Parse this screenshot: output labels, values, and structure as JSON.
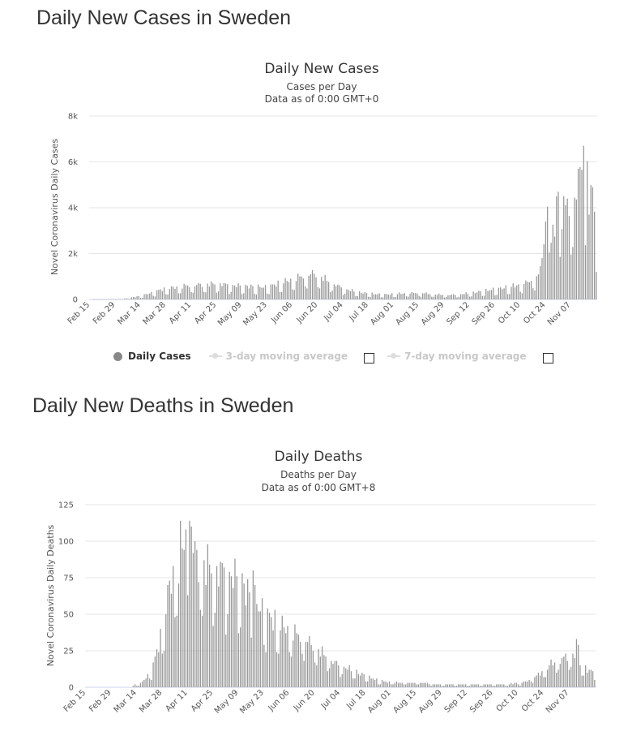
{
  "sections": [
    {
      "title": "Daily New Cases in Sweden"
    },
    {
      "title": "Daily New Deaths in Sweden"
    }
  ],
  "legend": {
    "items": [
      {
        "label": "Daily Cases",
        "active": true
      },
      {
        "label": "3-day moving average",
        "active": false
      },
      {
        "label": "7-day moving average",
        "active": false
      }
    ]
  },
  "colors": {
    "bar": "#999999",
    "grid": "#e6e6e6",
    "text": "#333333"
  },
  "chart_data": [
    {
      "type": "bar",
      "title": "Daily New Cases",
      "subtitle": "Cases per Day",
      "subtitle2": "Data as of 0:00 GMT+0",
      "ylabel": "Novel Coronavirus Daily Cases",
      "ylim": [
        0,
        8000
      ],
      "yticks": [
        0,
        2000,
        4000,
        6000,
        8000
      ],
      "ytick_labels": [
        "0",
        "2k",
        "4k",
        "6k",
        "8k"
      ],
      "x_start": "Feb 15",
      "num_days": 281,
      "xtick_labels": [
        "Feb 15",
        "Feb 29",
        "Mar 14",
        "Mar 28",
        "Apr 11",
        "Apr 25",
        "May 09",
        "May 23",
        "Jun 06",
        "Jun 20",
        "Jul 04",
        "Jul 18",
        "Aug 01",
        "Aug 15",
        "Aug 29",
        "Sep 12",
        "Sep 26",
        "Oct 10",
        "Oct 24",
        "Nov 07"
      ],
      "xtick_day_index": [
        0,
        14,
        28,
        42,
        56,
        70,
        84,
        98,
        112,
        126,
        140,
        154,
        168,
        182,
        196,
        210,
        224,
        238,
        252,
        266
      ],
      "anchors": [
        [
          0,
          0
        ],
        [
          18,
          5
        ],
        [
          20,
          50
        ],
        [
          24,
          100
        ],
        [
          28,
          150
        ],
        [
          32,
          250
        ],
        [
          36,
          350
        ],
        [
          40,
          450
        ],
        [
          44,
          500
        ],
        [
          48,
          550
        ],
        [
          52,
          600
        ],
        [
          56,
          620
        ],
        [
          60,
          650
        ],
        [
          66,
          680
        ],
        [
          70,
          700
        ],
        [
          76,
          650
        ],
        [
          80,
          620
        ],
        [
          84,
          600
        ],
        [
          88,
          580
        ],
        [
          92,
          560
        ],
        [
          96,
          540
        ],
        [
          100,
          600
        ],
        [
          104,
          700
        ],
        [
          108,
          800
        ],
        [
          112,
          900
        ],
        [
          116,
          1000
        ],
        [
          120,
          1100
        ],
        [
          124,
          1150
        ],
        [
          128,
          1000
        ],
        [
          132,
          800
        ],
        [
          136,
          650
        ],
        [
          140,
          500
        ],
        [
          144,
          400
        ],
        [
          148,
          330
        ],
        [
          152,
          280
        ],
        [
          156,
          250
        ],
        [
          160,
          230
        ],
        [
          164,
          220
        ],
        [
          168,
          240
        ],
        [
          172,
          260
        ],
        [
          176,
          280
        ],
        [
          180,
          290
        ],
        [
          184,
          280
        ],
        [
          188,
          250
        ],
        [
          192,
          220
        ],
        [
          196,
          200
        ],
        [
          200,
          200
        ],
        [
          204,
          220
        ],
        [
          208,
          260
        ],
        [
          212,
          300
        ],
        [
          216,
          350
        ],
        [
          220,
          400
        ],
        [
          224,
          450
        ],
        [
          228,
          500
        ],
        [
          232,
          560
        ],
        [
          236,
          620
        ],
        [
          240,
          700
        ],
        [
          244,
          850
        ],
        [
          248,
          1100
        ],
        [
          250,
          1400
        ],
        [
          252,
          1800
        ],
        [
          254,
          2300
        ],
        [
          256,
          2800
        ],
        [
          258,
          3200
        ],
        [
          260,
          3500
        ],
        [
          262,
          3800
        ],
        [
          264,
          4100
        ],
        [
          266,
          4400
        ],
        [
          268,
          4600
        ],
        [
          270,
          4800
        ],
        [
          272,
          5000
        ],
        [
          274,
          5200
        ],
        [
          276,
          5400
        ],
        [
          278,
          4500
        ],
        [
          280,
          3000
        ]
      ],
      "highlights": [
        [
          250,
          1800
        ],
        [
          251,
          2400
        ],
        [
          252,
          3400
        ],
        [
          253,
          4050
        ],
        [
          258,
          4500
        ],
        [
          259,
          4700
        ],
        [
          262,
          4500
        ],
        [
          264,
          4400
        ],
        [
          270,
          5700
        ],
        [
          272,
          5650
        ],
        [
          273,
          6700
        ],
        [
          276,
          3700
        ]
      ],
      "weekend_factor": 0.45
    },
    {
      "type": "bar",
      "title": "Daily Deaths",
      "subtitle": "Deaths per Day",
      "subtitle2": "Data as of 0:00 GMT+8",
      "ylabel": "Novel Coronavirus Daily Deaths",
      "ylim": [
        0,
        125
      ],
      "yticks": [
        0,
        25,
        50,
        75,
        100,
        125
      ],
      "ytick_labels": [
        "0",
        "25",
        "50",
        "75",
        "100",
        "125"
      ],
      "x_start": "Feb 15",
      "num_days": 281,
      "xtick_labels": [
        "Feb 15",
        "Feb 29",
        "Mar 14",
        "Mar 28",
        "Apr 11",
        "Apr 25",
        "May 09",
        "May 23",
        "Jun 06",
        "Jun 20",
        "Jul 04",
        "Jul 18",
        "Aug 01",
        "Aug 15",
        "Aug 29",
        "Sep 12",
        "Sep 26",
        "Oct 10",
        "Oct 24",
        "Nov 07"
      ],
      "xtick_day_index": [
        0,
        14,
        28,
        42,
        56,
        70,
        84,
        98,
        112,
        126,
        140,
        154,
        168,
        182,
        196,
        210,
        224,
        238,
        252,
        266
      ],
      "anchors": [
        [
          0,
          0
        ],
        [
          24,
          0
        ],
        [
          26,
          1
        ],
        [
          28,
          2
        ],
        [
          30,
          3
        ],
        [
          32,
          5
        ],
        [
          34,
          8
        ],
        [
          36,
          12
        ],
        [
          38,
          20
        ],
        [
          40,
          30
        ],
        [
          42,
          40
        ],
        [
          44,
          55
        ],
        [
          46,
          70
        ],
        [
          48,
          80
        ],
        [
          50,
          85
        ],
        [
          52,
          90
        ],
        [
          54,
          95
        ],
        [
          56,
          100
        ],
        [
          58,
          95
        ],
        [
          60,
          92
        ],
        [
          62,
          88
        ],
        [
          66,
          85
        ],
        [
          70,
          82
        ],
        [
          76,
          80
        ],
        [
          80,
          78
        ],
        [
          84,
          75
        ],
        [
          88,
          68
        ],
        [
          92,
          60
        ],
        [
          96,
          55
        ],
        [
          100,
          50
        ],
        [
          104,
          45
        ],
        [
          108,
          42
        ],
        [
          112,
          40
        ],
        [
          116,
          37
        ],
        [
          120,
          34
        ],
        [
          124,
          30
        ],
        [
          128,
          26
        ],
        [
          132,
          22
        ],
        [
          136,
          18
        ],
        [
          140,
          15
        ],
        [
          144,
          13
        ],
        [
          148,
          11
        ],
        [
          152,
          9
        ],
        [
          156,
          7
        ],
        [
          160,
          5
        ],
        [
          164,
          4
        ],
        [
          168,
          3
        ],
        [
          172,
          3
        ],
        [
          176,
          3
        ],
        [
          180,
          3
        ],
        [
          184,
          3
        ],
        [
          188,
          3
        ],
        [
          192,
          2
        ],
        [
          196,
          2
        ],
        [
          200,
          2
        ],
        [
          204,
          2
        ],
        [
          208,
          2
        ],
        [
          212,
          2
        ],
        [
          216,
          2
        ],
        [
          220,
          2
        ],
        [
          224,
          2
        ],
        [
          228,
          2
        ],
        [
          232,
          2
        ],
        [
          236,
          3
        ],
        [
          240,
          3
        ],
        [
          244,
          5
        ],
        [
          248,
          8
        ],
        [
          252,
          12
        ],
        [
          256,
          16
        ],
        [
          260,
          19
        ],
        [
          264,
          21
        ],
        [
          266,
          22
        ],
        [
          268,
          24
        ],
        [
          270,
          20
        ],
        [
          272,
          17
        ],
        [
          274,
          14
        ],
        [
          276,
          12
        ],
        [
          278,
          11
        ],
        [
          280,
          10
        ]
      ],
      "highlights": [
        [
          52,
          114
        ],
        [
          55,
          108
        ],
        [
          57,
          114
        ],
        [
          58,
          110
        ],
        [
          92,
          80
        ],
        [
          93,
          70
        ],
        [
          270,
          33
        ],
        [
          271,
          29
        ]
      ],
      "weekend_factor": 0.55
    }
  ]
}
